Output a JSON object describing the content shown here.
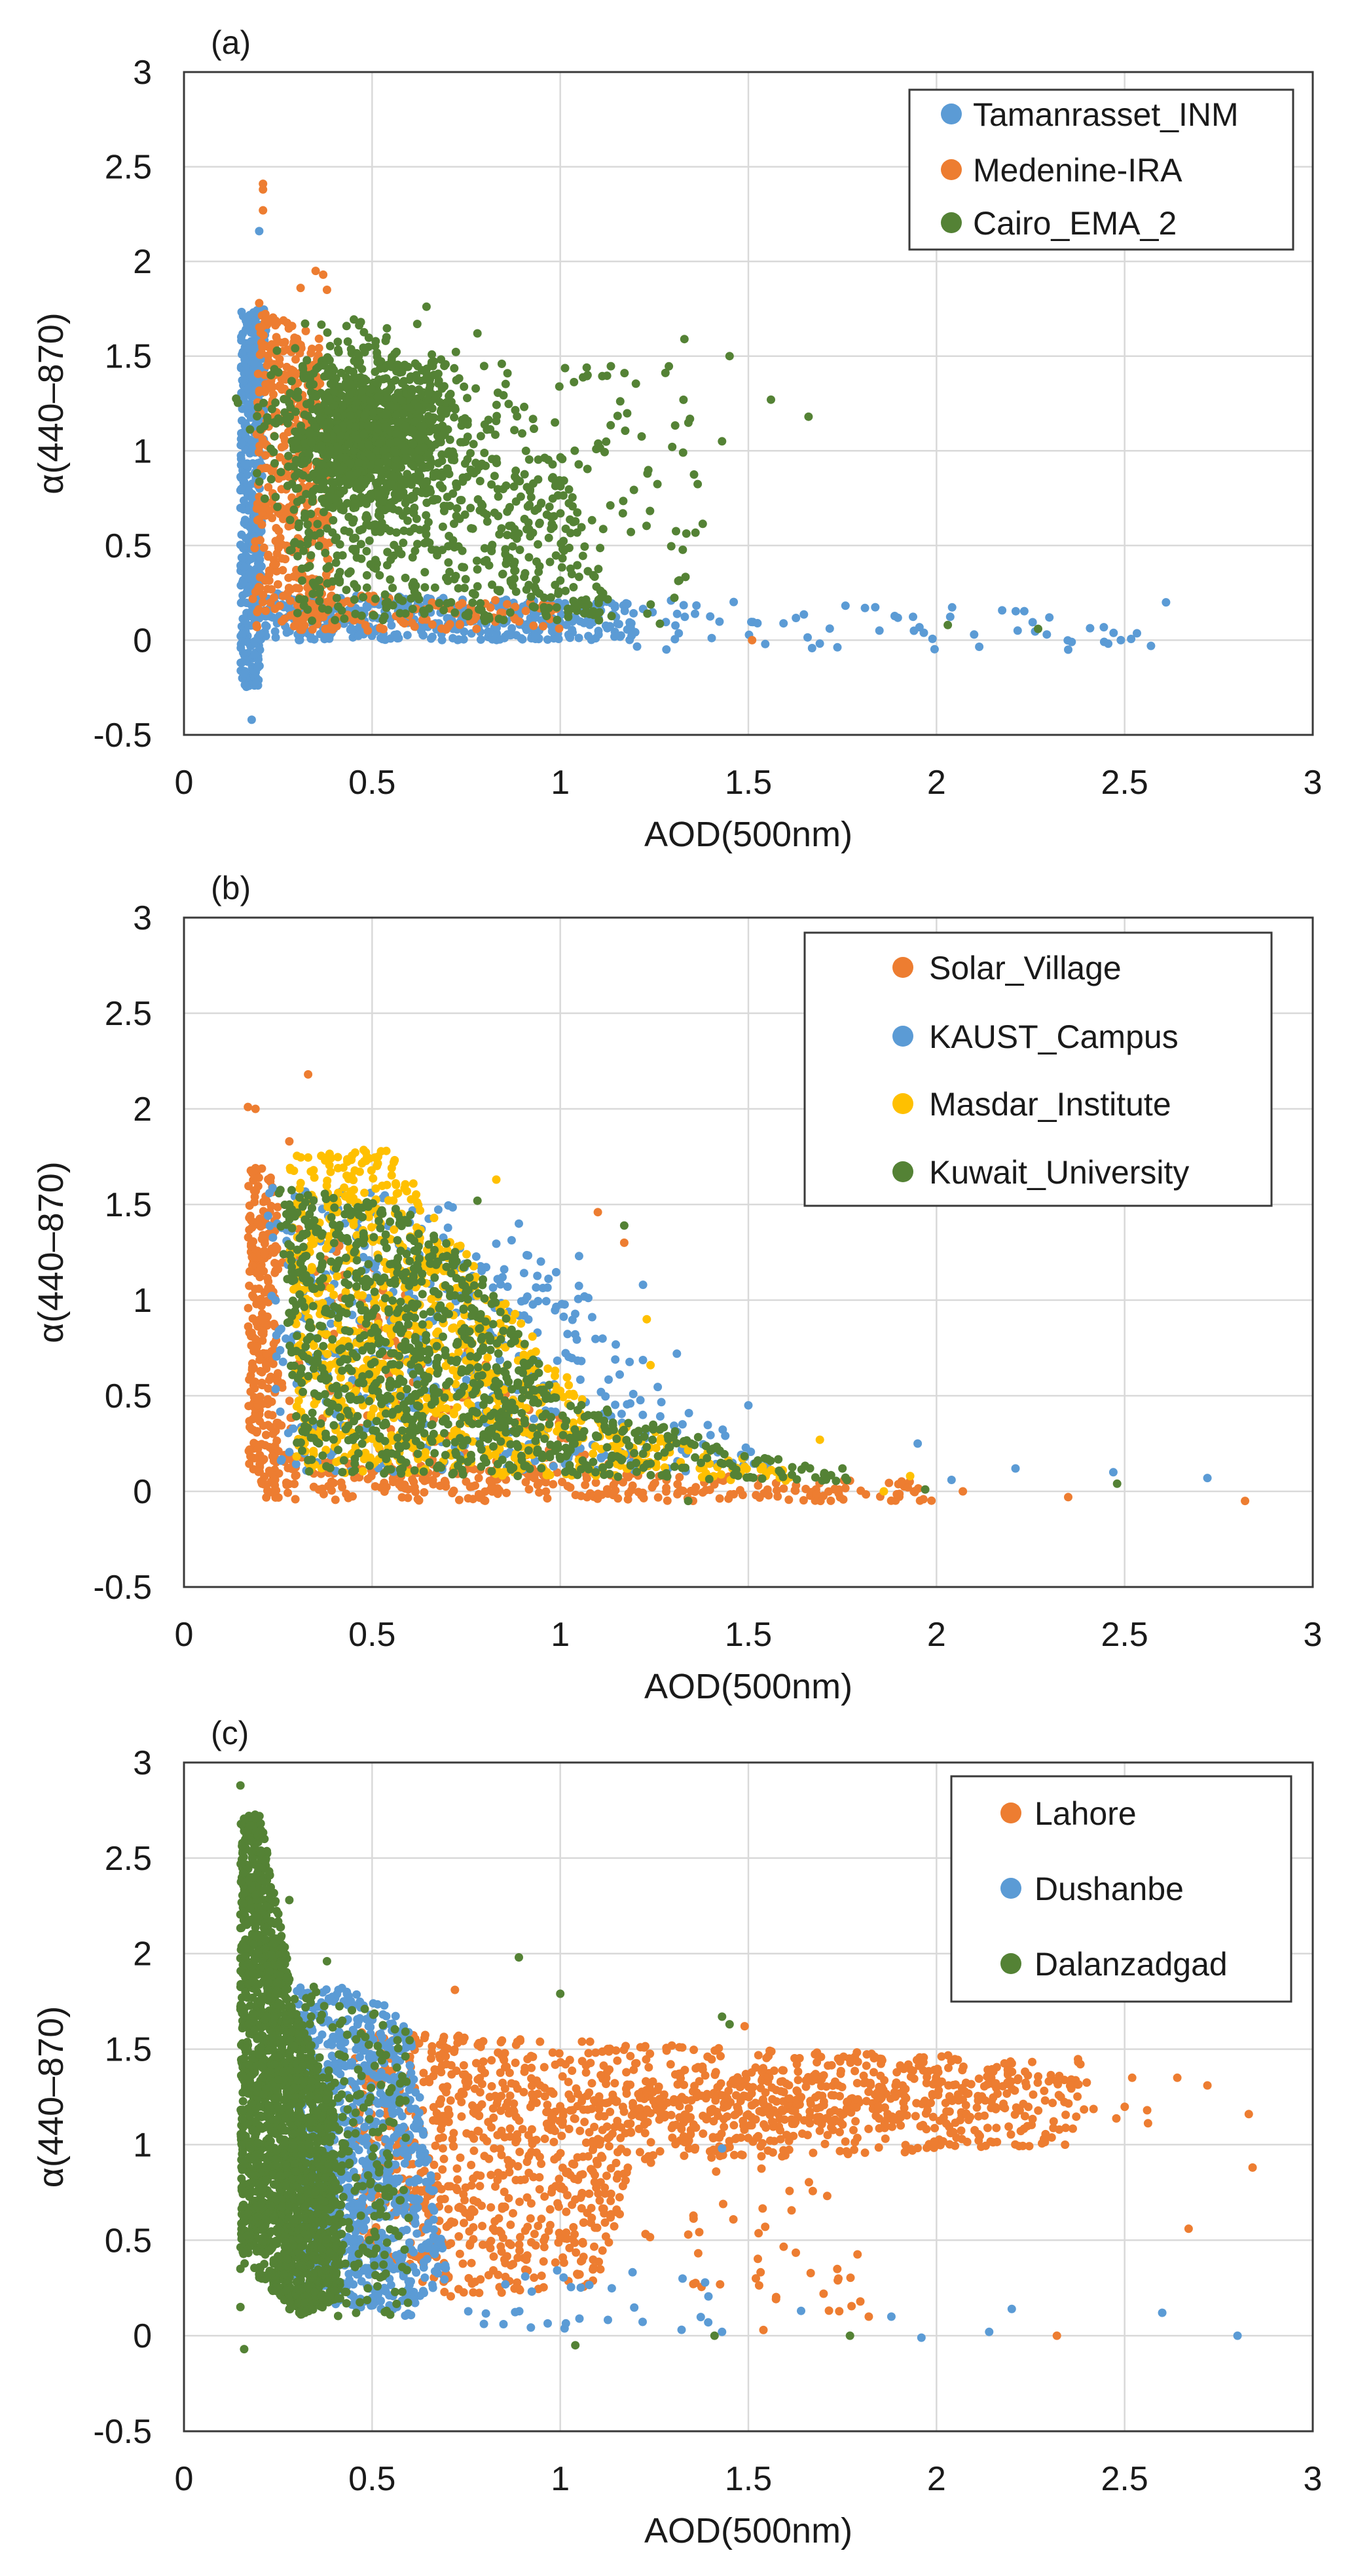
{
  "colors": {
    "blue": "#5b9bd5",
    "orange": "#ed7d31",
    "green": "#548235",
    "yellow": "#ffc000"
  },
  "chart_data": [
    {
      "type": "scatter",
      "panel_label": "(a)",
      "xlabel": "AOD(500nm)",
      "ylabel": "α(440–870)",
      "xlim": [
        0,
        3
      ],
      "ylim": [
        -0.5,
        3
      ],
      "xticks": [
        "0",
        "0.5",
        "1",
        "1.5",
        "2",
        "2.5",
        "3"
      ],
      "yticks": [
        "-0.5",
        "0",
        "0.5",
        "1",
        "1.5",
        "2",
        "2.5",
        "3"
      ],
      "grid": true,
      "legend_position": "top-right",
      "series": [
        {
          "name": "Tamanrasset_INM",
          "color": "#5b9bd5",
          "regions": [
            {
              "poly": [
                [
                  0.15,
                  -0.25
                ],
                [
                  0.2,
                  -0.25
                ],
                [
                  0.22,
                  1.75
                ],
                [
                  0.15,
                  1.75
                ]
              ],
              "n": 500
            },
            {
              "poly": [
                [
                  0.2,
                  0.0
                ],
                [
                  1.2,
                  0.0
                ],
                [
                  1.2,
                  0.2
                ],
                [
                  0.2,
                  0.25
                ]
              ],
              "n": 420
            },
            {
              "poly": [
                [
                  1.2,
                  -0.05
                ],
                [
                  2.6,
                  -0.05
                ],
                [
                  2.6,
                  0.15
                ],
                [
                  1.2,
                  0.22
                ]
              ],
              "n": 60
            }
          ],
          "points": [
            [
              0.18,
              -0.42
            ],
            [
              0.2,
              2.16
            ],
            [
              2.61,
              0.2
            ],
            [
              2.57,
              -0.03
            ],
            [
              2.35,
              -0.05
            ],
            [
              2.3,
              0.12
            ],
            [
              2.49,
              0.0
            ],
            [
              1.81,
              0.17
            ],
            [
              1.94,
              0.05
            ],
            [
              2.1,
              0.03
            ]
          ]
        },
        {
          "name": "Medenine-IRA",
          "color": "#ed7d31",
          "regions": [
            {
              "poly": [
                [
                  0.18,
                  0.05
                ],
                [
                  0.4,
                  0.05
                ],
                [
                  0.36,
                  1.6
                ],
                [
                  0.2,
                  1.75
                ]
              ],
              "n": 420
            },
            {
              "poly": [
                [
                  0.3,
                  0.05
                ],
                [
                  1.0,
                  0.05
                ],
                [
                  1.0,
                  0.2
                ],
                [
                  0.3,
                  0.25
                ]
              ],
              "n": 100
            }
          ],
          "points": [
            [
              0.21,
              2.41
            ],
            [
              0.21,
              2.38
            ],
            [
              0.21,
              2.27
            ],
            [
              0.35,
              1.95
            ],
            [
              0.37,
              1.93
            ],
            [
              0.38,
              1.85
            ],
            [
              0.31,
              1.86
            ],
            [
              1.51,
              0.0
            ],
            [
              0.2,
              1.78
            ]
          ]
        },
        {
          "name": "Cairo_EMA_2",
          "color": "#548235",
          "gauss": [
            {
              "c": [
                0.5,
                1.1
              ],
              "s": [
                0.12,
                0.2
              ],
              "n": 1200
            }
          ],
          "regions": [
            {
              "poly": [
                [
                  0.25,
                  1.0
                ],
                [
                  1.0,
                  1.0
                ],
                [
                  1.15,
                  0.1
                ],
                [
                  0.3,
                  0.1
                ]
              ],
              "n": 500
            },
            {
              "poly": [
                [
                  0.8,
                  1.5
                ],
                [
                  1.35,
                  1.45
                ],
                [
                  1.4,
                  0.05
                ],
                [
                  0.8,
                  0.1
                ]
              ],
              "n": 110
            }
          ],
          "points": [
            [
              1.33,
              1.59
            ],
            [
              1.45,
              1.5
            ],
            [
              1.56,
              1.27
            ],
            [
              1.66,
              1.18
            ],
            [
              1.43,
              1.05
            ],
            [
              2.03,
              0.08
            ],
            [
              2.27,
              0.06
            ],
            [
              0.47,
              1.68
            ],
            [
              0.62,
              1.67
            ],
            [
              0.78,
              1.62
            ]
          ]
        }
      ]
    },
    {
      "type": "scatter",
      "panel_label": "(b)",
      "xlabel": "AOD(500nm)",
      "ylabel": "α(440–870)",
      "xlim": [
        0,
        3
      ],
      "ylim": [
        -0.5,
        3
      ],
      "xticks": [
        "0",
        "0.5",
        "1",
        "1.5",
        "2",
        "2.5",
        "3"
      ],
      "yticks": [
        "-0.5",
        "0",
        "0.5",
        "1",
        "1.5",
        "2",
        "2.5",
        "3"
      ],
      "grid": true,
      "legend_position": "top-right",
      "series": [
        {
          "name": "Solar_Village",
          "color": "#ed7d31",
          "regions": [
            {
              "poly": [
                [
                  0.17,
                  0.1
                ],
                [
                  0.25,
                  0.1
                ],
                [
                  0.25,
                  1.7
                ],
                [
                  0.17,
                  1.7
                ]
              ],
              "n": 260
            },
            {
              "poly": [
                [
                  0.2,
                  -0.05
                ],
                [
                  2.0,
                  -0.05
                ],
                [
                  2.0,
                  0.05
                ],
                [
                  0.8,
                  0.12
                ],
                [
                  0.2,
                  0.2
                ]
              ],
              "n": 320
            },
            {
              "poly": [
                [
                  0.25,
                  1.6
                ],
                [
                  0.9,
                  0.5
                ],
                [
                  1.3,
                  0.1
                ],
                [
                  0.25,
                  0.1
                ]
              ],
              "n": 150
            }
          ],
          "points": [
            [
              0.33,
              2.18
            ],
            [
              0.17,
              2.01
            ],
            [
              0.19,
              2.0
            ],
            [
              2.82,
              -0.05
            ],
            [
              2.35,
              -0.03
            ],
            [
              2.07,
              0.0
            ],
            [
              1.1,
              1.46
            ],
            [
              1.17,
              1.3
            ],
            [
              0.28,
              1.83
            ]
          ]
        },
        {
          "name": "KAUST_Campus",
          "color": "#5b9bd5",
          "regions": [
            {
              "poly": [
                [
                  0.22,
                  1.6
                ],
                [
                  0.65,
                  1.55
                ],
                [
                  1.0,
                  1.2
                ],
                [
                  1.3,
                  0.5
                ],
                [
                  1.6,
                  0.1
                ],
                [
                  0.25,
                  0.1
                ]
              ],
              "n": 420
            }
          ],
          "points": [
            [
              1.95,
              0.25
            ],
            [
              2.21,
              0.12
            ],
            [
              2.47,
              0.1
            ],
            [
              2.72,
              0.07
            ],
            [
              1.5,
              0.45
            ],
            [
              1.31,
              0.72
            ],
            [
              1.22,
              1.08
            ],
            [
              2.04,
              0.06
            ],
            [
              1.05,
              1.23
            ],
            [
              0.89,
              1.4
            ]
          ]
        },
        {
          "name": "Masdar_Institute",
          "color": "#ffc000",
          "regions": [
            {
              "poly": [
                [
                  0.27,
                  1.75
                ],
                [
                  0.55,
                  1.8
                ],
                [
                  0.85,
                  1.0
                ],
                [
                  1.1,
                  0.4
                ],
                [
                  1.7,
                  0.05
                ],
                [
                  0.3,
                  0.1
                ]
              ],
              "n": 900
            }
          ],
          "points": [
            [
              0.83,
              1.63
            ],
            [
              1.69,
              0.27
            ],
            [
              1.93,
              0.08
            ],
            [
              1.86,
              0.0
            ],
            [
              1.23,
              0.9
            ],
            [
              1.24,
              0.66
            ]
          ]
        },
        {
          "name": "Kuwait_University",
          "color": "#548235",
          "regions": [
            {
              "poly": [
                [
                  0.25,
                  1.6
                ],
                [
                  0.6,
                  1.5
                ],
                [
                  0.8,
                  1.1
                ],
                [
                  1.0,
                  0.5
                ],
                [
                  1.8,
                  0.05
                ],
                [
                  0.3,
                  0.1
                ]
              ],
              "n": 1000
            }
          ],
          "points": [
            [
              1.17,
              1.39
            ],
            [
              2.48,
              0.04
            ],
            [
              1.75,
              0.12
            ],
            [
              1.97,
              0.01
            ],
            [
              0.78,
              1.52
            ],
            [
              1.34,
              -0.05
            ]
          ]
        }
      ]
    },
    {
      "type": "scatter",
      "panel_label": "(c)",
      "xlabel": "AOD(500nm)",
      "ylabel": "α(440–870)",
      "xlim": [
        0,
        3
      ],
      "ylim": [
        -0.5,
        3
      ],
      "xticks": [
        "0",
        "0.5",
        "1",
        "1.5",
        "2",
        "2.5",
        "3"
      ],
      "yticks": [
        "-0.5",
        "0",
        "0.5",
        "1",
        "1.5",
        "2",
        "2.5",
        "3"
      ],
      "grid": true,
      "legend_position": "top-right",
      "series": [
        {
          "name": "Lahore",
          "color": "#ed7d31",
          "regions": [
            {
              "poly": [
                [
                  0.45,
                  1.6
                ],
                [
                  1.5,
                  1.5
                ],
                [
                  2.4,
                  1.45
                ],
                [
                  2.4,
                  1.0
                ],
                [
                  1.2,
                  0.9
                ],
                [
                  1.1,
                  0.25
                ],
                [
                  0.7,
                  0.2
                ],
                [
                  0.45,
                  0.5
                ]
              ],
              "n": 1300
            },
            {
              "poly": [
                [
                  1.2,
                  0.9
                ],
                [
                  1.8,
                  0.9
                ],
                [
                  1.8,
                  0.1
                ],
                [
                  1.2,
                  0.3
                ]
              ],
              "n": 40
            }
          ],
          "gauss": [
            {
              "c": [
                1.5,
                1.22
              ],
              "s": [
                0.35,
                0.08
              ],
              "n": 250
            }
          ],
          "points": [
            [
              2.83,
              1.16
            ],
            [
              2.84,
              0.88
            ],
            [
              2.67,
              0.56
            ],
            [
              2.72,
              1.31
            ],
            [
              2.64,
              1.35
            ],
            [
              2.32,
              0.0
            ],
            [
              1.54,
              0.03
            ],
            [
              1.7,
              0.22
            ],
            [
              1.52,
              0.3
            ],
            [
              1.82,
              0.1
            ],
            [
              2.52,
              1.35
            ],
            [
              2.56,
              1.18
            ],
            [
              1.49,
              1.62
            ],
            [
              0.72,
              1.81
            ]
          ]
        },
        {
          "name": "Dushanbe",
          "color": "#5b9bd5",
          "regions": [
            {
              "poly": [
                [
                  0.3,
                  1.85
                ],
                [
                  0.5,
                  1.8
                ],
                [
                  0.6,
                  1.6
                ],
                [
                  0.7,
                  0.3
                ],
                [
                  0.6,
                  0.1
                ],
                [
                  0.3,
                  0.2
                ]
              ],
              "n": 900
            },
            {
              "poly": [
                [
                  0.7,
                  0.0
                ],
                [
                  1.4,
                  0.0
                ],
                [
                  1.4,
                  0.35
                ],
                [
                  0.7,
                  0.35
                ]
              ],
              "n": 30
            }
          ],
          "points": [
            [
              2.8,
              0.0
            ],
            [
              2.6,
              0.12
            ],
            [
              2.2,
              0.14
            ],
            [
              2.14,
              0.02
            ],
            [
              1.96,
              -0.01
            ],
            [
              1.88,
              0.1
            ],
            [
              1.43,
              0.98
            ],
            [
              1.64,
              0.13
            ],
            [
              1.43,
              0.02
            ]
          ]
        },
        {
          "name": "Dalanzadgad",
          "color": "#548235",
          "regions": [
            {
              "poly": [
                [
                  0.15,
                  2.7
                ],
                [
                  0.2,
                  2.75
                ],
                [
                  0.3,
                  1.7
                ],
                [
                  0.4,
                  1.2
                ],
                [
                  0.42,
                  0.2
                ],
                [
                  0.3,
                  0.1
                ],
                [
                  0.15,
                  0.4
                ]
              ],
              "n": 2000
            },
            {
              "poly": [
                [
                  0.3,
                  1.9
                ],
                [
                  0.6,
                  1.6
                ],
                [
                  0.6,
                  0.1
                ],
                [
                  0.3,
                  0.1
                ]
              ],
              "n": 250
            }
          ],
          "points": [
            [
              0.15,
              2.88
            ],
            [
              0.16,
              -0.07
            ],
            [
              0.89,
              1.98
            ],
            [
              1.0,
              1.79
            ],
            [
              1.43,
              1.67
            ],
            [
              1.45,
              1.63
            ],
            [
              1.04,
              -0.05
            ],
            [
              1.41,
              0.0
            ],
            [
              1.77,
              0.0
            ],
            [
              0.38,
              1.96
            ],
            [
              0.28,
              2.28
            ],
            [
              0.15,
              0.15
            ],
            [
              0.15,
              0.35
            ]
          ]
        }
      ]
    }
  ]
}
